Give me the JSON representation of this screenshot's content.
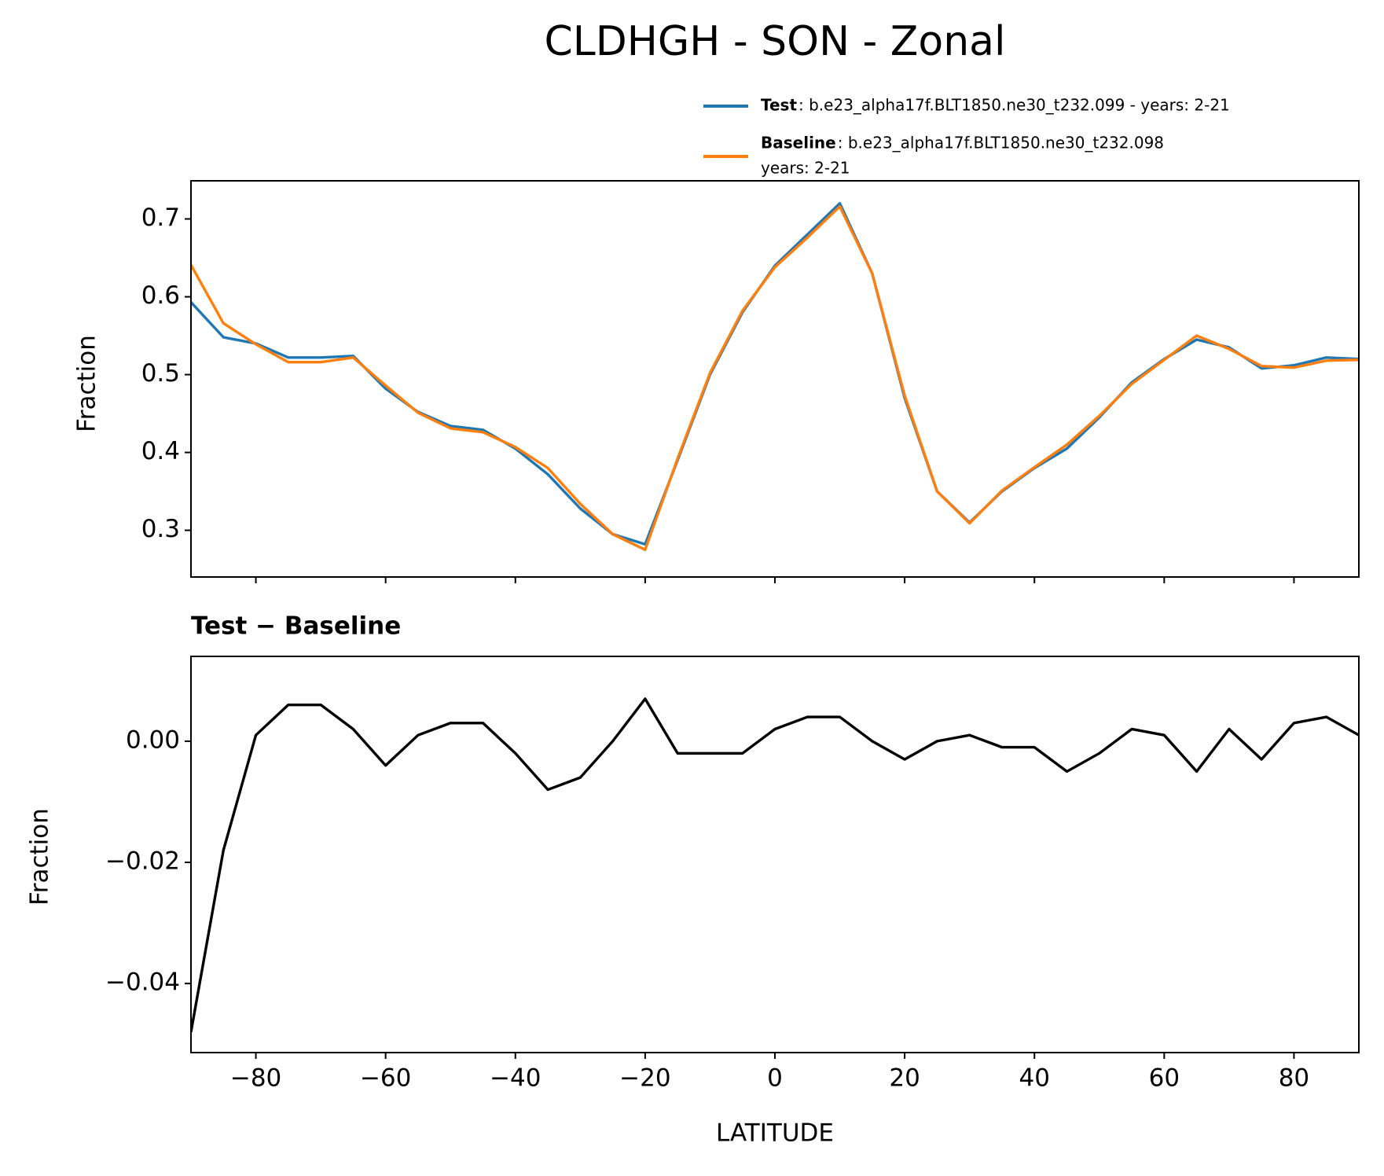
{
  "chart_data": [
    {
      "type": "line",
      "title": "CLDHGH - SON - Zonal",
      "ylabel": "Fraction",
      "x": [
        -90,
        -85,
        -80,
        -75,
        -70,
        -65,
        -60,
        -55,
        -50,
        -45,
        -40,
        -35,
        -30,
        -25,
        -20,
        -15,
        -10,
        -5,
        0,
        5,
        10,
        15,
        20,
        25,
        30,
        35,
        40,
        45,
        50,
        55,
        60,
        65,
        70,
        75,
        80,
        85,
        90
      ],
      "series": [
        {
          "name": "Test",
          "description": [
            ": b.e23_alpha17f.BLT1850.ne30_t232.099 - years: 2-21"
          ],
          "color": "#1f77b4",
          "values": [
            0.593,
            0.548,
            0.54,
            0.522,
            0.522,
            0.524,
            0.482,
            0.452,
            0.434,
            0.429,
            0.405,
            0.372,
            0.328,
            0.295,
            0.282,
            0.39,
            0.5,
            0.58,
            0.64,
            0.68,
            0.72,
            0.63,
            0.47,
            0.35,
            0.31,
            0.35,
            0.38,
            0.405,
            0.445,
            0.49,
            0.52,
            0.545,
            0.535,
            0.508,
            0.512,
            0.522,
            0.52
          ]
        },
        {
          "name": "Baseline",
          "description": [
            ": b.e23_alpha17f.BLT1850.ne30_t232.098",
            "years: 2-21"
          ],
          "color": "#ff7f0e",
          "values": [
            0.641,
            0.566,
            0.539,
            0.516,
            0.516,
            0.522,
            0.486,
            0.451,
            0.431,
            0.426,
            0.407,
            0.38,
            0.334,
            0.295,
            0.275,
            0.392,
            0.502,
            0.582,
            0.638,
            0.676,
            0.716,
            0.63,
            0.473,
            0.35,
            0.309,
            0.351,
            0.381,
            0.41,
            0.447,
            0.488,
            0.519,
            0.55,
            0.533,
            0.511,
            0.509,
            0.518,
            0.519
          ]
        }
      ],
      "xlim": [
        -90,
        90
      ],
      "xticks": [
        -80,
        -60,
        -40,
        -20,
        0,
        20,
        40,
        60,
        80
      ],
      "xtick_labels": false,
      "ylim": [
        0.24,
        0.749
      ],
      "yticks": [
        0.3,
        0.4,
        0.5,
        0.6,
        0.7
      ]
    },
    {
      "type": "line",
      "title": "Test − Baseline",
      "xlabel": "LATITUDE",
      "ylabel": "Fraction",
      "x": [
        -90,
        -85,
        -80,
        -75,
        -70,
        -65,
        -60,
        -55,
        -50,
        -45,
        -40,
        -35,
        -30,
        -25,
        -20,
        -15,
        -10,
        -5,
        0,
        5,
        10,
        15,
        20,
        25,
        30,
        35,
        40,
        45,
        50,
        55,
        60,
        65,
        70,
        75,
        80,
        85,
        90
      ],
      "color": "#000000",
      "values": [
        -0.048,
        -0.018,
        0.001,
        0.006,
        0.006,
        0.002,
        -0.004,
        0.001,
        0.003,
        0.003,
        -0.002,
        -0.008,
        -0.006,
        0.0,
        0.007,
        -0.002,
        -0.002,
        -0.002,
        0.002,
        0.004,
        0.004,
        0.0,
        -0.003,
        0.0,
        0.001,
        -0.001,
        -0.001,
        -0.005,
        -0.002,
        0.002,
        0.001,
        -0.005,
        0.002,
        -0.003,
        0.003,
        0.004,
        0.001
      ],
      "xlim": [
        -90,
        90
      ],
      "xticks": [
        {
          "value": -80,
          "label": "−80"
        },
        {
          "value": -60,
          "label": "−60"
        },
        {
          "value": -40,
          "label": "−40"
        },
        {
          "value": -20,
          "label": "−20"
        },
        0,
        20,
        40,
        60,
        80
      ],
      "xtick_labels": true,
      "ylim": [
        -0.0514,
        0.014
      ],
      "yticks": [
        {
          "value": -0.04,
          "label": "−0.04"
        },
        {
          "value": -0.02,
          "label": "−0.02"
        },
        {
          "value": 0,
          "label": "0.00"
        }
      ]
    }
  ]
}
